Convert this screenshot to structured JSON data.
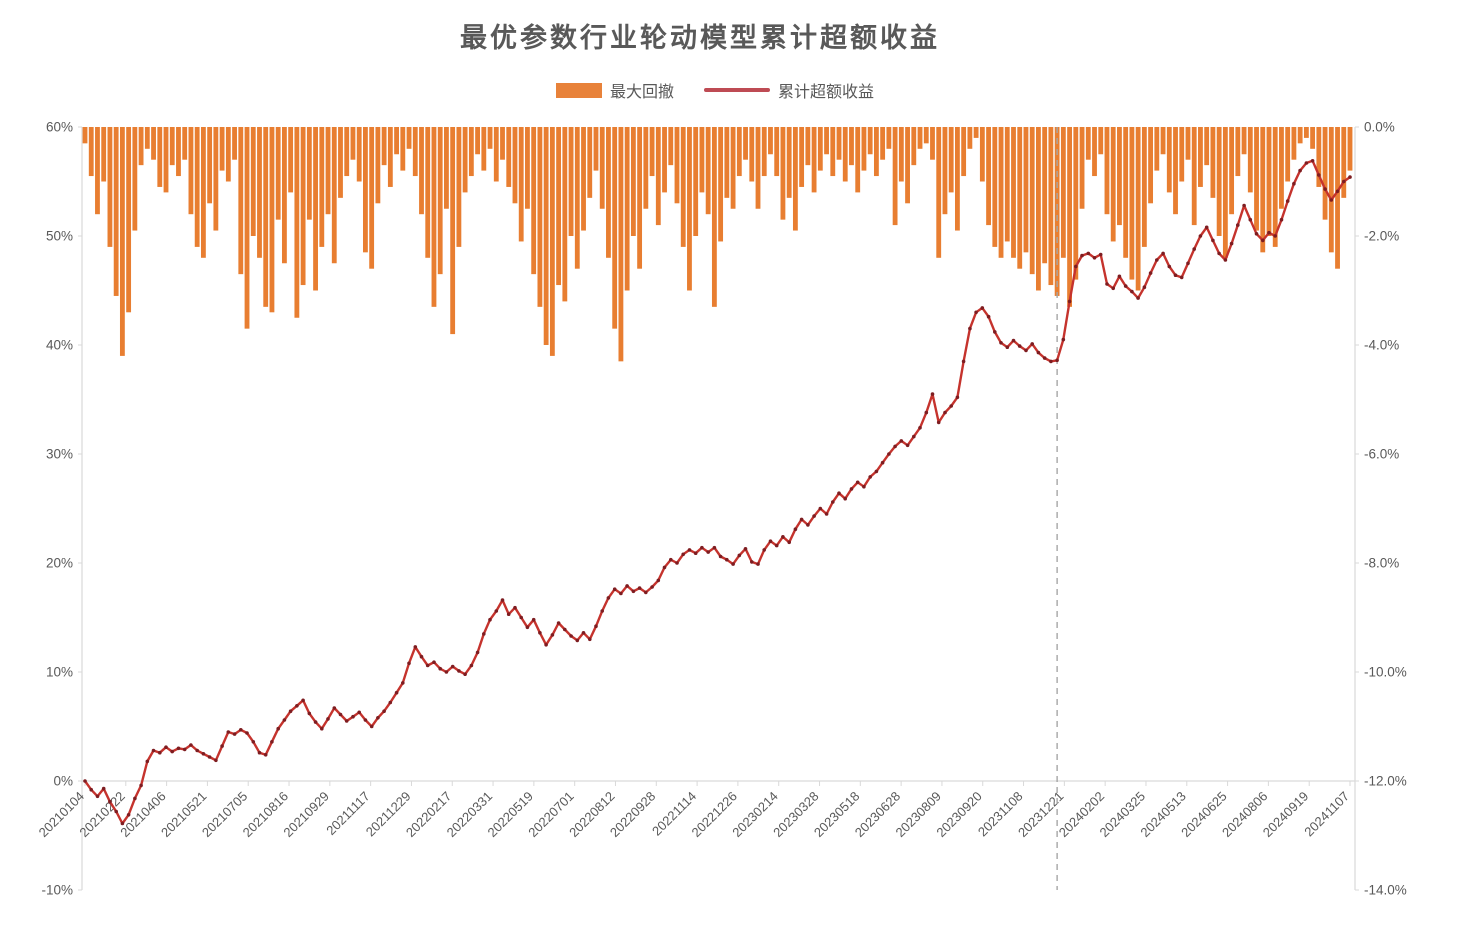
{
  "page": {
    "background": "#ffffff"
  },
  "chart_data": {
    "type": "combo-bar-line",
    "title": "最优参数行业轮动模型累计超额收益",
    "legend": [
      {
        "label": "最大回撤",
        "swatch": "bar",
        "color": "#E8823A"
      },
      {
        "label": "累计超额收益",
        "swatch": "line",
        "color": "#BE4B54"
      }
    ],
    "left_axis": {
      "ticks": [
        "60%",
        "50%",
        "40%",
        "30%",
        "20%",
        "10%",
        "0%",
        "-10%"
      ],
      "max": 60,
      "min": -10,
      "zero_line": true
    },
    "right_axis": {
      "ticks": [
        "0.0%",
        "-2.0%",
        "-4.0%",
        "-6.0%",
        "-8.0%",
        "-10.0%",
        "-12.0%",
        "-14.0%"
      ],
      "max": 0,
      "min": -14
    },
    "x_labels": [
      "20210104",
      "20210222",
      "20210406",
      "20210521",
      "20210705",
      "20210816",
      "20210929",
      "20211117",
      "20211229",
      "20220217",
      "20220331",
      "20220519",
      "20220701",
      "20220812",
      "20220928",
      "20221114",
      "20221226",
      "20230214",
      "20230328",
      "20230518",
      "20230628",
      "20230809",
      "20230920",
      "20231108",
      "20231221",
      "20240202",
      "20240325",
      "20240513",
      "20240625",
      "20240806",
      "20240919",
      "20241107"
    ],
    "grid": false,
    "colors": {
      "bar": "#E87E31",
      "line": "#C5332D",
      "marker": "#7E1D21",
      "axis_text": "#595959",
      "axis_line": "#D9D9D9",
      "dashed": "#A6A6A6"
    },
    "annotations": [
      {
        "type": "vline",
        "style": "dashed",
        "color": "#A6A6A6",
        "x_index": 156
      }
    ],
    "series": [
      {
        "name": "最大回撤",
        "axis": "right",
        "type": "bar",
        "color": "#E87E31",
        "values": [
          -0.3,
          -0.9,
          -1.6,
          -1.0,
          -2.2,
          -3.1,
          -4.2,
          -3.4,
          -1.9,
          -0.7,
          -0.4,
          -0.6,
          -1.1,
          -1.2,
          -0.7,
          -0.9,
          -0.6,
          -1.6,
          -2.2,
          -2.4,
          -1.4,
          -1.9,
          -0.8,
          -1.0,
          -0.6,
          -2.7,
          -3.7,
          -2.0,
          -2.4,
          -3.3,
          -3.4,
          -1.7,
          -2.5,
          -1.2,
          -3.5,
          -2.9,
          -1.7,
          -3.0,
          -2.2,
          -1.6,
          -2.5,
          -1.3,
          -0.9,
          -0.6,
          -1.0,
          -2.3,
          -2.6,
          -1.4,
          -0.7,
          -1.1,
          -0.5,
          -0.8,
          -0.4,
          -0.9,
          -1.6,
          -2.4,
          -3.3,
          -2.7,
          -1.5,
          -3.8,
          -2.2,
          -1.2,
          -0.9,
          -0.5,
          -0.8,
          -0.4,
          -1.0,
          -0.6,
          -1.1,
          -1.4,
          -2.1,
          -1.5,
          -2.7,
          -3.3,
          -4.0,
          -4.2,
          -2.9,
          -3.2,
          -2.0,
          -2.6,
          -1.9,
          -1.3,
          -0.8,
          -1.5,
          -2.4,
          -3.7,
          -4.3,
          -3.0,
          -2.0,
          -2.6,
          -1.5,
          -0.9,
          -1.8,
          -1.2,
          -0.7,
          -1.4,
          -2.2,
          -3.0,
          -2.0,
          -1.2,
          -1.6,
          -3.3,
          -2.1,
          -1.3,
          -1.5,
          -0.9,
          -0.6,
          -1.0,
          -1.5,
          -0.9,
          -0.5,
          -0.9,
          -1.7,
          -1.3,
          -1.9,
          -1.1,
          -0.7,
          -1.2,
          -0.8,
          -0.5,
          -0.9,
          -0.6,
          -1.0,
          -0.7,
          -1.2,
          -0.8,
          -0.5,
          -0.9,
          -0.6,
          -0.4,
          -1.8,
          -1.0,
          -1.4,
          -0.7,
          -0.4,
          -0.3,
          -0.6,
          -2.4,
          -1.6,
          -1.2,
          -1.9,
          -0.9,
          -0.4,
          -0.2,
          -1.0,
          -1.8,
          -2.2,
          -2.4,
          -2.1,
          -2.4,
          -2.6,
          -2.3,
          -2.7,
          -3.0,
          -2.5,
          -2.9,
          -3.1,
          -2.4,
          -3.3,
          -2.8,
          -1.5,
          -0.6,
          -0.9,
          -0.5,
          -1.6,
          -2.1,
          -1.8,
          -2.4,
          -2.8,
          -3.0,
          -2.2,
          -1.4,
          -0.8,
          -0.5,
          -1.2,
          -1.6,
          -1.0,
          -0.6,
          -1.8,
          -1.1,
          -0.7,
          -1.3,
          -2.0,
          -2.4,
          -1.6,
          -0.9,
          -0.5,
          -1.2,
          -1.9,
          -2.3,
          -2.0,
          -2.2,
          -1.5,
          -1.0,
          -0.6,
          -0.3,
          -0.2,
          -0.4,
          -1.1,
          -1.7,
          -2.3,
          -2.6,
          -1.3,
          -0.8
        ]
      },
      {
        "name": "累计超额收益",
        "axis": "left",
        "type": "line",
        "color": "#C5332D",
        "marker_color": "#7E1D21",
        "values": [
          0.0,
          -0.8,
          -1.4,
          -0.7,
          -1.9,
          -2.8,
          -3.9,
          -3.1,
          -1.6,
          -0.4,
          1.8,
          2.8,
          2.6,
          3.1,
          2.7,
          3.0,
          2.9,
          3.3,
          2.8,
          2.5,
          2.2,
          1.9,
          3.2,
          4.5,
          4.3,
          4.7,
          4.4,
          3.6,
          2.6,
          2.4,
          3.6,
          4.8,
          5.6,
          6.4,
          6.9,
          7.4,
          6.2,
          5.4,
          4.8,
          5.7,
          6.7,
          6.1,
          5.5,
          5.9,
          6.3,
          5.6,
          5.0,
          5.8,
          6.4,
          7.2,
          8.1,
          9.0,
          10.8,
          12.3,
          11.4,
          10.6,
          10.9,
          10.3,
          10.0,
          10.5,
          10.1,
          9.8,
          10.6,
          11.8,
          13.5,
          14.8,
          15.6,
          16.6,
          15.3,
          15.9,
          15.0,
          14.1,
          14.8,
          13.6,
          12.5,
          13.4,
          14.5,
          13.9,
          13.3,
          12.9,
          13.6,
          13.0,
          14.2,
          15.6,
          16.8,
          17.6,
          17.2,
          17.9,
          17.4,
          17.7,
          17.3,
          17.8,
          18.4,
          19.6,
          20.3,
          20.0,
          20.8,
          21.2,
          20.9,
          21.4,
          21.0,
          21.4,
          20.6,
          20.3,
          19.9,
          20.7,
          21.3,
          20.1,
          19.9,
          21.2,
          22.0,
          21.6,
          22.4,
          21.9,
          23.1,
          24.0,
          23.5,
          24.3,
          25.0,
          24.5,
          25.6,
          26.4,
          25.9,
          26.8,
          27.4,
          27.0,
          27.9,
          28.4,
          29.2,
          30.0,
          30.7,
          31.2,
          30.8,
          31.6,
          32.4,
          33.8,
          35.5,
          32.9,
          33.8,
          34.4,
          35.2,
          38.5,
          41.5,
          43.0,
          43.4,
          42.6,
          41.2,
          40.2,
          39.8,
          40.4,
          39.9,
          39.5,
          40.1,
          39.3,
          38.8,
          38.5,
          38.6,
          40.5,
          44.0,
          47.2,
          48.2,
          48.4,
          48.0,
          48.3,
          45.6,
          45.2,
          46.3,
          45.4,
          44.9,
          44.3,
          45.3,
          46.6,
          47.8,
          48.4,
          47.2,
          46.4,
          46.2,
          47.5,
          48.8,
          50.0,
          50.8,
          49.6,
          48.4,
          47.8,
          49.3,
          51.0,
          52.8,
          51.5,
          50.2,
          49.6,
          50.3,
          50.0,
          51.5,
          53.2,
          54.8,
          56.0,
          56.7,
          56.9,
          55.6,
          54.3,
          53.3,
          54.1,
          55.0,
          55.4
        ]
      }
    ]
  }
}
